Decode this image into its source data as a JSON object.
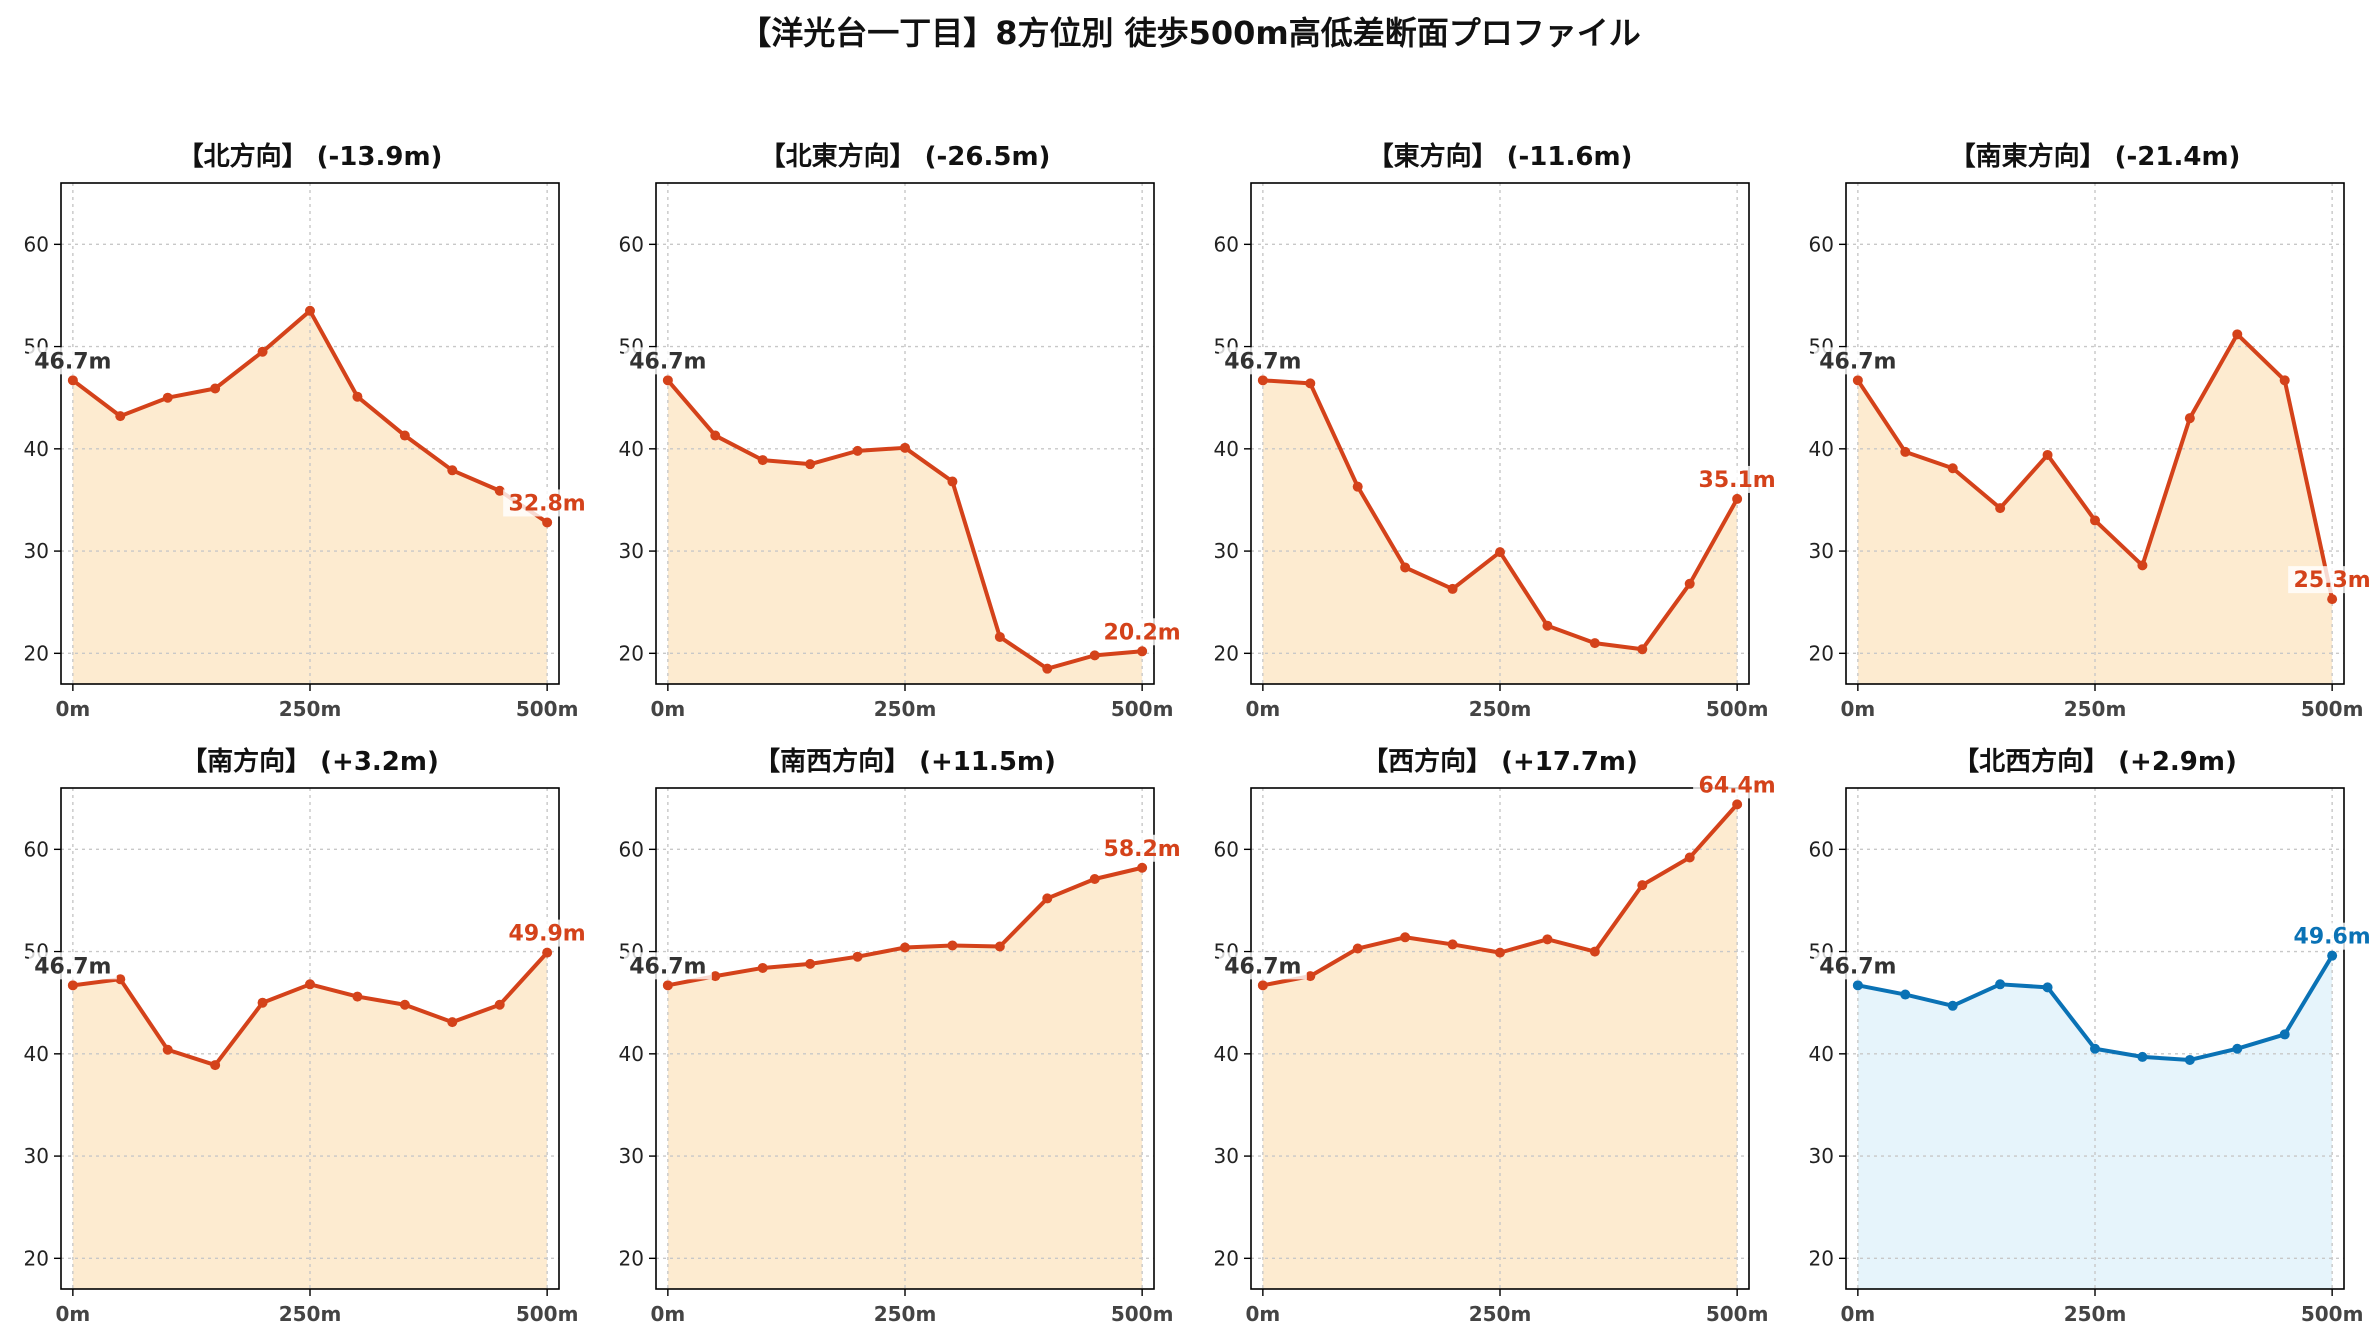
{
  "title": "【洋光台一丁目】8方位別 徒歩500m高低差断面プロファイル",
  "colors": {
    "down_line": "#d4421a",
    "down_fill": "#fdebd0",
    "up_line": "#0a72b5",
    "up_fill": "#e6f4fb",
    "start_label": "#333333"
  },
  "chart_data": [
    {
      "type": "area",
      "title": "【北方向】 (-13.9m)",
      "trend": "down",
      "x": [
        0,
        50,
        100,
        150,
        200,
        250,
        300,
        350,
        400,
        450,
        500
      ],
      "values": [
        46.7,
        43.2,
        45.0,
        45.9,
        49.5,
        53.5,
        45.1,
        41.3,
        37.9,
        35.9,
        32.8
      ],
      "start_label": "46.7m",
      "end_label": "32.8m",
      "ylim": [
        17,
        66
      ],
      "yticks": [
        20,
        30,
        40,
        50,
        60
      ],
      "xticks": [
        "0m",
        "250m",
        "500m"
      ],
      "grid": true
    },
    {
      "type": "area",
      "title": "【北東方向】 (-26.5m)",
      "trend": "down",
      "x": [
        0,
        50,
        100,
        150,
        200,
        250,
        300,
        350,
        400,
        450,
        500
      ],
      "values": [
        46.7,
        41.3,
        38.9,
        38.5,
        39.8,
        40.1,
        36.8,
        21.6,
        18.5,
        19.8,
        20.2
      ],
      "start_label": "46.7m",
      "end_label": "20.2m",
      "ylim": [
        17,
        66
      ],
      "yticks": [
        20,
        30,
        40,
        50,
        60
      ],
      "xticks": [
        "0m",
        "250m",
        "500m"
      ],
      "grid": true
    },
    {
      "type": "area",
      "title": "【東方向】 (-11.6m)",
      "trend": "down",
      "x": [
        0,
        50,
        100,
        150,
        200,
        250,
        300,
        350,
        400,
        450,
        500
      ],
      "values": [
        46.7,
        46.4,
        36.3,
        28.4,
        26.3,
        29.9,
        22.7,
        21.0,
        20.4,
        26.8,
        35.1
      ],
      "start_label": "46.7m",
      "end_label": "35.1m",
      "ylim": [
        17,
        66
      ],
      "yticks": [
        20,
        30,
        40,
        50,
        60
      ],
      "xticks": [
        "0m",
        "250m",
        "500m"
      ],
      "grid": true
    },
    {
      "type": "area",
      "title": "【南東方向】 (-21.4m)",
      "trend": "down",
      "x": [
        0,
        50,
        100,
        150,
        200,
        250,
        300,
        350,
        400,
        450,
        500
      ],
      "values": [
        46.7,
        39.7,
        38.1,
        34.2,
        39.4,
        33.0,
        28.6,
        43.0,
        51.2,
        46.7,
        25.3
      ],
      "start_label": "46.7m",
      "end_label": "25.3m",
      "ylim": [
        17,
        66
      ],
      "yticks": [
        20,
        30,
        40,
        50,
        60
      ],
      "xticks": [
        "0m",
        "250m",
        "500m"
      ],
      "grid": true
    },
    {
      "type": "area",
      "title": "【南方向】 (+3.2m)",
      "trend": "down",
      "x": [
        0,
        50,
        100,
        150,
        200,
        250,
        300,
        350,
        400,
        450,
        500
      ],
      "values": [
        46.7,
        47.3,
        40.4,
        38.9,
        45.0,
        46.8,
        45.6,
        44.8,
        43.1,
        44.8,
        49.9
      ],
      "start_label": "46.7m",
      "end_label": "49.9m",
      "ylim": [
        17,
        66
      ],
      "yticks": [
        20,
        30,
        40,
        50,
        60
      ],
      "xticks": [
        "0m",
        "250m",
        "500m"
      ],
      "grid": true
    },
    {
      "type": "area",
      "title": "【南西方向】 (+11.5m)",
      "trend": "down",
      "x": [
        0,
        50,
        100,
        150,
        200,
        250,
        300,
        350,
        400,
        450,
        500
      ],
      "values": [
        46.7,
        47.6,
        48.4,
        48.8,
        49.5,
        50.4,
        50.6,
        50.5,
        55.2,
        57.1,
        58.2
      ],
      "start_label": "46.7m",
      "end_label": "58.2m",
      "ylim": [
        17,
        66
      ],
      "yticks": [
        20,
        30,
        40,
        50,
        60
      ],
      "xticks": [
        "0m",
        "250m",
        "500m"
      ],
      "grid": true
    },
    {
      "type": "area",
      "title": "【西方向】 (+17.7m)",
      "trend": "down",
      "x": [
        0,
        50,
        100,
        150,
        200,
        250,
        300,
        350,
        400,
        450,
        500
      ],
      "values": [
        46.7,
        47.6,
        50.3,
        51.4,
        50.7,
        49.9,
        51.2,
        50.0,
        56.5,
        59.2,
        64.4
      ],
      "start_label": "46.7m",
      "end_label": "64.4m",
      "ylim": [
        17,
        66
      ],
      "yticks": [
        20,
        30,
        40,
        50,
        60
      ],
      "xticks": [
        "0m",
        "250m",
        "500m"
      ],
      "grid": true
    },
    {
      "type": "area",
      "title": "【北西方向】 (+2.9m)",
      "trend": "up",
      "x": [
        0,
        50,
        100,
        150,
        200,
        250,
        300,
        350,
        400,
        450,
        500
      ],
      "values": [
        46.7,
        45.8,
        44.7,
        46.8,
        46.5,
        40.5,
        39.7,
        39.4,
        40.5,
        41.9,
        49.6
      ],
      "start_label": "46.7m",
      "end_label": "49.6m",
      "ylim": [
        17,
        66
      ],
      "yticks": [
        20,
        30,
        40,
        50,
        60
      ],
      "xticks": [
        "0m",
        "250m",
        "500m"
      ],
      "grid": true
    }
  ]
}
